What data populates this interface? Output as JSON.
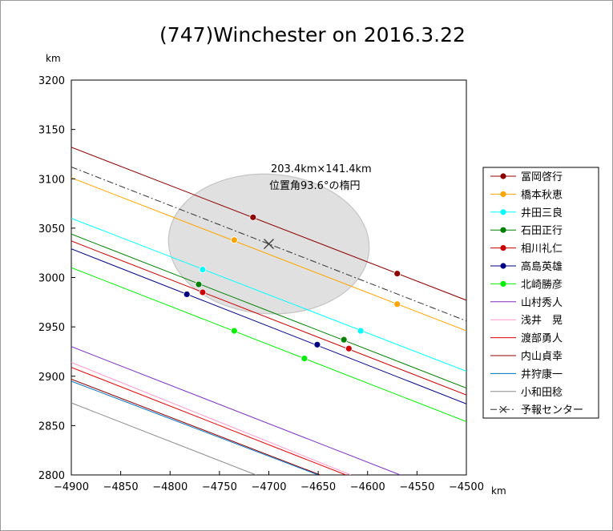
{
  "chart_data": {
    "type": "line",
    "title": "(747)Winchester on 2016.3.22",
    "xlabel": "km",
    "ylabel": "km",
    "xlim": [
      -4900,
      -4500
    ],
    "ylim": [
      2800,
      3200
    ],
    "xticks": [
      -4900,
      -4850,
      -4800,
      -4750,
      -4700,
      -4650,
      -4600,
      -4550,
      -4500
    ],
    "yticks": [
      2800,
      2850,
      2900,
      2950,
      3000,
      3050,
      3100,
      3150,
      3200
    ],
    "xtick_labels": [
      "−4900",
      "−4850",
      "−4800",
      "−4750",
      "−4700",
      "−4650",
      "−4600",
      "−4550",
      "−4500"
    ],
    "ytick_labels": [
      "2800",
      "2850",
      "2900",
      "2950",
      "3000",
      "3050",
      "3100",
      "3150",
      "3200"
    ],
    "grid": false,
    "legend_position": "right",
    "ellipse": {
      "center": [
        -4700,
        3034
      ],
      "major_axis_km": 203.4,
      "minor_axis_km": 141.4,
      "position_angle_deg": 93.6,
      "color": "#e0e0e0",
      "label_line1": "203.4km×141.4km",
      "label_line2": "位置角93.6°の楕円"
    },
    "center": {
      "name": "予報センター",
      "x": -4700,
      "y": 3034,
      "color": "#333333"
    },
    "center_line": {
      "x": [
        -4900,
        -4500
      ],
      "y": [
        3112,
        2956
      ]
    },
    "series": [
      {
        "name": "冨岡啓行",
        "color": "#8b0000",
        "line": {
          "x": [
            -4900,
            -4500
          ],
          "y": [
            3132,
            2977
          ]
        },
        "points": [
          {
            "x": -4716,
            "y": 3061
          },
          {
            "x": -4570,
            "y": 3004
          }
        ]
      },
      {
        "name": "橋本秋恵",
        "color": "#ffa500",
        "line": {
          "x": [
            -4900,
            -4500
          ],
          "y": [
            3101,
            2946
          ]
        },
        "points": [
          {
            "x": -4735,
            "y": 3038
          },
          {
            "x": -4570,
            "y": 2973
          }
        ]
      },
      {
        "name": "井田三良",
        "color": "#00ffff",
        "line": {
          "x": [
            -4900,
            -4500
          ],
          "y": [
            3060,
            2905
          ]
        },
        "points": [
          {
            "x": -4767,
            "y": 3008
          },
          {
            "x": -4607,
            "y": 2946
          }
        ]
      },
      {
        "name": "石田正行",
        "color": "#008000",
        "line": {
          "x": [
            -4900,
            -4500
          ],
          "y": [
            3044,
            2888
          ]
        },
        "points": [
          {
            "x": -4771,
            "y": 2993
          },
          {
            "x": -4624,
            "y": 2937
          }
        ]
      },
      {
        "name": "相川礼仁",
        "color": "#cc0000",
        "line": {
          "x": [
            -4900,
            -4500
          ],
          "y": [
            3037,
            2881
          ]
        },
        "points": [
          {
            "x": -4767,
            "y": 2985
          },
          {
            "x": -4619,
            "y": 2928
          }
        ]
      },
      {
        "name": "高島英雄",
        "color": "#000080",
        "line": {
          "x": [
            -4900,
            -4500
          ],
          "y": [
            3029,
            2872
          ]
        },
        "points": [
          {
            "x": -4783,
            "y": 2983
          },
          {
            "x": -4651,
            "y": 2932
          }
        ]
      },
      {
        "name": "北崎勝彦",
        "color": "#00ee00",
        "line": {
          "x": [
            -4900,
            -4500
          ],
          "y": [
            3010,
            2854
          ]
        },
        "points": [
          {
            "x": -4735,
            "y": 2946
          },
          {
            "x": -4664,
            "y": 2918
          }
        ]
      },
      {
        "name": "山村秀人",
        "color": "#7b2fbe",
        "line": {
          "x": [
            -4900,
            -4567
          ],
          "y": [
            2930,
            2800
          ]
        },
        "points": []
      },
      {
        "name": "浅井　晃",
        "color": "#ff99cc",
        "line": {
          "x": [
            -4900,
            -4617
          ],
          "y": [
            2914,
            2800
          ]
        },
        "points": []
      },
      {
        "name": "渡部勇人",
        "color": "#e00000",
        "line": {
          "x": [
            -4900,
            -4622
          ],
          "y": [
            2909,
            2800
          ]
        },
        "points": []
      },
      {
        "name": "内山貞幸",
        "color": "#8b0000",
        "line": {
          "x": [
            -4900,
            -4648
          ],
          "y": [
            2897,
            2800
          ]
        },
        "points": []
      },
      {
        "name": "井狩康一",
        "color": "#0070c0",
        "line": {
          "x": [
            -4900,
            -4650
          ],
          "y": [
            2895,
            2800
          ]
        },
        "points": []
      },
      {
        "name": "小和田稔",
        "color": "#8c8c8c",
        "line": {
          "x": [
            -4900,
            -4713
          ],
          "y": [
            2873,
            2800
          ]
        },
        "points": []
      }
    ]
  }
}
